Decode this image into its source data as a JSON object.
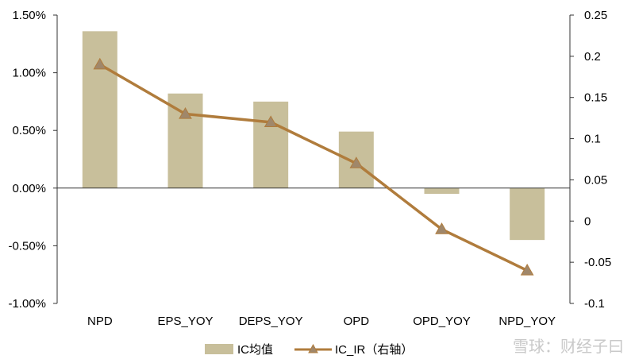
{
  "chart_data": {
    "type": "bar",
    "categories": [
      "NPD",
      "EPS_YOY",
      "DEPS_YOY",
      "OPD",
      "OPD_YOY",
      "NPD_YOY"
    ],
    "series": [
      {
        "name": "IC均值",
        "type": "bar",
        "axis": "left",
        "color": "#c8bf9b",
        "values": [
          0.0136,
          0.0082,
          0.0075,
          0.0049,
          -0.0005,
          -0.0045
        ]
      },
      {
        "name": "IC_IR（右轴）",
        "type": "line",
        "axis": "right",
        "color": "#b07c3c",
        "marker": "triangle",
        "values": [
          0.19,
          0.13,
          0.12,
          0.07,
          -0.01,
          -0.06
        ]
      }
    ],
    "y_left": {
      "range": [
        -0.01,
        0.015
      ],
      "ticks": [
        0.015,
        0.01,
        0.005,
        0,
        -0.005,
        -0.01
      ],
      "tick_labels": [
        "1.50%",
        "1.00%",
        "0.50%",
        "0.00%",
        "-0.50%",
        "-1.00%"
      ]
    },
    "y_right": {
      "range": [
        -0.1,
        0.25
      ],
      "ticks": [
        0.25,
        0.2,
        0.15,
        0.1,
        0.05,
        0,
        -0.05,
        -0.1
      ],
      "tick_labels": [
        "0.25",
        "0.2",
        "0.15",
        "0.1",
        "0.05",
        "0",
        "-0.05",
        "-0.1"
      ]
    },
    "legend_position": "bottom",
    "grid": false
  },
  "watermark": "雪球：财经子曰"
}
